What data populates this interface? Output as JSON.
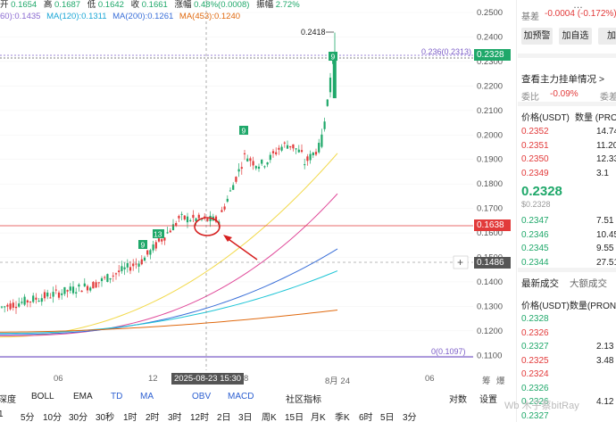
{
  "stats": {
    "open_label": "开",
    "open": "0.1654",
    "high_label": "高",
    "high": "0.1687",
    "low_label": "低",
    "low": "0.1642",
    "close_label": "收",
    "close": "0.1661",
    "chg_label": "涨幅",
    "chg": "0.48%(0.0008)",
    "amp_label": "振幅",
    "amp": "2.72%"
  },
  "ma": {
    "ma60": "60):0.1435",
    "ma120": "MA(120):0.1311",
    "ma200": "MA(200):0.1261",
    "ma453": "MA(453):0.1240"
  },
  "y_axis": [
    "0.2500",
    "0.2400",
    "0.2300",
    "0.2200",
    "0.2100",
    "0.2000",
    "0.1900",
    "0.1800",
    "0.1700",
    "0.1600",
    "0.1500",
    "0.1400",
    "0.1300",
    "0.1200",
    "0.1100"
  ],
  "annotations": {
    "high": "0.2418",
    "fib236": "0.236(0.2313)",
    "fib0": "0(0.1097)",
    "last_price": "0.2328",
    "red_line": "0.1638",
    "crosshair_price": "0.1486",
    "badge9a": "9",
    "badge9b": "9",
    "badge13": "13",
    "badge9c": "9",
    "cross": "+"
  },
  "x_axis": {
    "t1": "06",
    "t2": "12",
    "t3": "2025-08-23 15:30",
    "t4": "8",
    "t5": "8月 24",
    "t6": "06",
    "t7": "筹",
    "t8": "爆"
  },
  "indicators": [
    "深度",
    "BOLL",
    "EMA",
    "TD",
    "MA",
    "OBV",
    "MACD",
    "社区指标",
    "对数",
    "设置"
  ],
  "timeframes": [
    "1",
    "5分",
    "10分",
    "30分",
    "30秒",
    "1时",
    "2时",
    "3时",
    "12时",
    "2日",
    "3日",
    "周K",
    "15日",
    "月K",
    "季K",
    "6时",
    "5日",
    "3分"
  ],
  "right": {
    "r1_label": "",
    "r1_val": "",
    "r1_icon": "…",
    "base_label": "基差",
    "base_val": "-0.0004 (-0.172%)",
    "btn1": "加预警",
    "btn2": "加自选",
    "btn3": "加",
    "depth_title": "查看主力挂单情况 >",
    "ratio_label": "委比",
    "ratio_val": "-0.09%",
    "diff_label": "委差",
    "head_price": "价格(USDT)",
    "head_qty": "数量 (PRON",
    "asks": [
      {
        "p": "0.2352",
        "q": "14.74"
      },
      {
        "p": "0.2351",
        "q": "11.20"
      },
      {
        "p": "0.2350",
        "q": "12.33"
      },
      {
        "p": "0.2349",
        "q": "3.1"
      }
    ],
    "last": "0.2328",
    "last_sub": "$0.2328",
    "bids": [
      {
        "p": "0.2347",
        "q": "7.51"
      },
      {
        "p": "0.2346",
        "q": "10.45"
      },
      {
        "p": "0.2345",
        "q": "9.55"
      },
      {
        "p": "0.2344",
        "q": "27.51"
      }
    ],
    "tab1": "最新成交",
    "tab2": "大额成交",
    "trade_head": "价格(USDT)数量(PRON",
    "trades": [
      {
        "p": "0.2328",
        "q": "",
        "c": "grn"
      },
      {
        "p": "0.2326",
        "q": "",
        "c": "red"
      },
      {
        "p": "0.2327",
        "q": "2.13",
        "c": "grn"
      },
      {
        "p": "0.2325",
        "q": "3.48",
        "c": "red"
      },
      {
        "p": "0.2324",
        "q": "",
        "c": "red"
      },
      {
        "p": "0.2326",
        "q": "",
        "c": "grn"
      },
      {
        "p": "0.2326",
        "q": "4.12",
        "c": "grn"
      },
      {
        "p": "0.2327",
        "q": "",
        "c": "grn"
      }
    ]
  },
  "watermark": "Wb 木子蔡bitRay"
}
